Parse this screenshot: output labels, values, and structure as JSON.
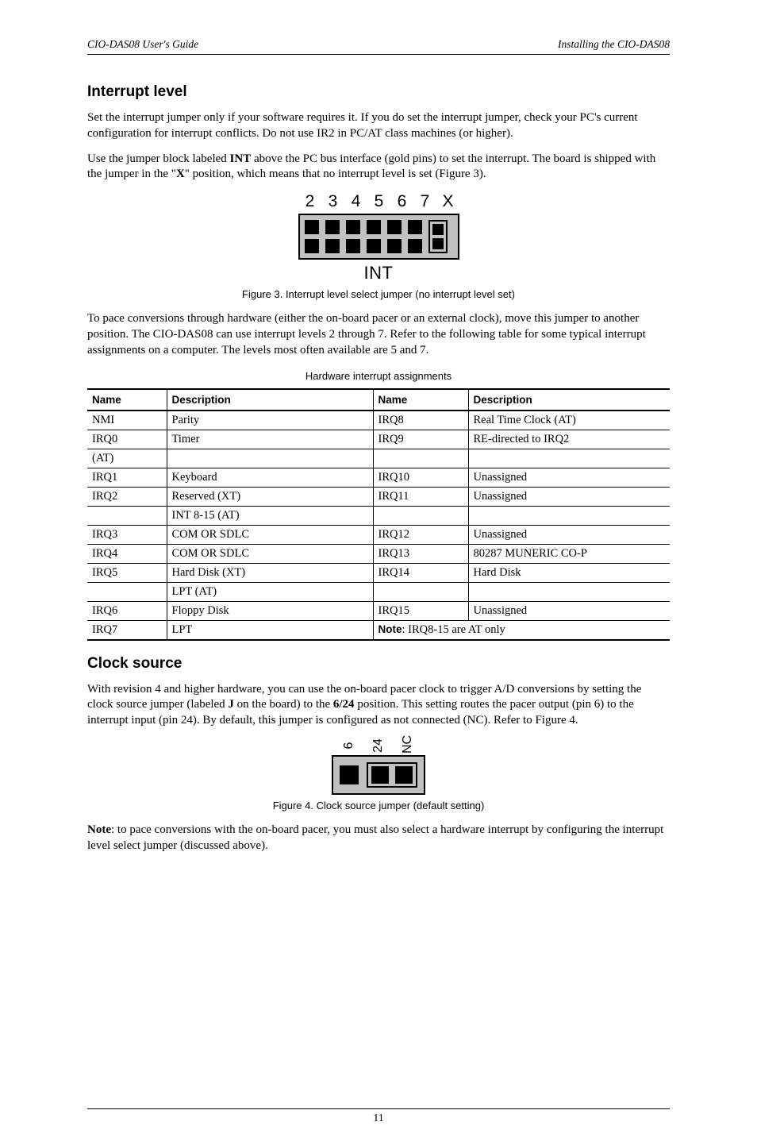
{
  "header": {
    "left": "CIO-DAS08 User's Guide",
    "right": "Installing the CIO-DAS08"
  },
  "sections": {
    "interrupt": {
      "title": "Interrupt level",
      "p1": "Set the interrupt jumper only if your software requires it. If you do set the interrupt jumper, check your PC's current configuration for interrupt conflicts. Do not use IR2 in PC/AT class machines (or higher).",
      "p2_a": "Use the jumper block labeled ",
      "p2_bold1": "INT",
      "p2_b": " above the PC bus interface (gold pins) to set the interrupt. The board is shipped with the jumper in the \"",
      "p2_bold2": "X",
      "p2_c": "\" position, which means that no interrupt level is set (Figure 3).",
      "p3": "To pace conversions through hardware (either the on-board pacer or an external clock), move this jumper to another position. The CIO-DAS08 can use interrupt levels 2 through 7. Refer to the following table for some typical interrupt assignments on a computer. The levels most often available are 5 and 7."
    },
    "clock": {
      "title": "Clock source",
      "p1_a": "With revision 4 and higher hardware, you can use the on-board pacer clock to trigger A/D conversions by setting the clock source jumper (labeled ",
      "p1_bold1": "J",
      "p1_b": " on the board) to the ",
      "p1_bold2": "6/24",
      "p1_c": " position. This setting routes the pacer output (pin 6) to the interrupt input (pin 24). By default, this jumper is configured as not connected (NC). Refer to Figure 4.",
      "p2_bold": "Note",
      "p2": ": to pace conversions with the on-board pacer, you must also select a hardware interrupt by configuring the interrupt level select jumper (discussed above)."
    }
  },
  "figure3": {
    "labels": [
      "2",
      "3",
      "4",
      "5",
      "6",
      "7",
      "X"
    ],
    "sub": "INT",
    "caption": "Figure 3. Interrupt level select jumper (no interrupt level set)",
    "pin_color": "#000000",
    "bg_color": "#c0c0c0"
  },
  "figure4": {
    "labels": [
      "6",
      "24",
      "NC"
    ],
    "caption": "Figure 4. Clock source jumper (default setting)",
    "pin_color": "#000000",
    "bg_color": "#c0c0c0"
  },
  "irq_table": {
    "caption": "Hardware interrupt assignments",
    "head": [
      "Name",
      "Description",
      "Name",
      "Description"
    ],
    "rows": [
      [
        "NMI",
        "Parity",
        "IRQ8",
        "Real Time Clock (AT)"
      ],
      [
        "IRQ0",
        "Timer",
        "IRQ9",
        "RE-directed to IRQ2"
      ],
      [
        "(AT)",
        "",
        "",
        ""
      ],
      [
        "IRQ1",
        "Keyboard",
        "IRQ10",
        "Unassigned"
      ],
      [
        "IRQ2",
        "Reserved (XT)",
        "IRQ11",
        "Unassigned"
      ],
      [
        "",
        "INT 8-15 (AT)",
        "",
        ""
      ],
      [
        "IRQ3",
        "COM OR SDLC",
        "IRQ12",
        "Unassigned"
      ],
      [
        "IRQ4",
        "COM OR SDLC",
        "IRQ13",
        "80287 MUNERIC CO-P"
      ],
      [
        "IRQ5",
        "Hard Disk (XT)",
        "IRQ14",
        "Hard Disk"
      ],
      [
        "",
        "LPT (AT)",
        "",
        ""
      ],
      [
        "IRQ6",
        "Floppy Disk",
        "IRQ15",
        "Unassigned"
      ]
    ],
    "last_row": {
      "c1": "IRQ7",
      "c2": "LPT",
      "note_bold": "Note",
      "note_rest": ": IRQ8-15 are AT only"
    }
  },
  "page_number": "11"
}
